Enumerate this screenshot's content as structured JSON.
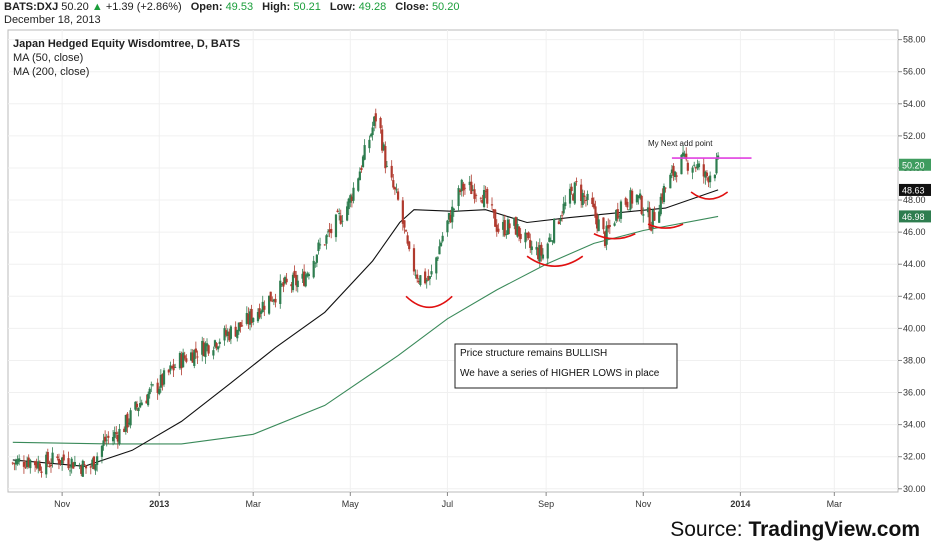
{
  "header": {
    "symbol": "BATS:DXJ",
    "price": "50.20",
    "change_arrow": "▲",
    "change": "+1.39 (+2.86%)",
    "open_label": "Open:",
    "open": "49.53",
    "high_label": "High:",
    "high": "50.21",
    "low_label": "Low:",
    "low": "49.28",
    "close_label": "Close:",
    "close": "50.20",
    "date": "December 18, 2013"
  },
  "legend": {
    "title": "Japan Hedged Equity Wisdomtree, D, BATS",
    "ma50": "MA (50, close)",
    "ma200": "MA (200, close)"
  },
  "annotations": {
    "box_line1": "Price structure remains BULLISH",
    "box_line2": "We have a series of HIGHER LOWS in place",
    "next_add": "My Next add point"
  },
  "source": {
    "prefix": "Source: ",
    "brand": "TradingView.com"
  },
  "colors": {
    "up": "#2e7d4f",
    "down": "#b03a2e",
    "ma50": "#111111",
    "ma200": "#3a8a5a",
    "highlight": "#e01010",
    "resistance": "#e040e0",
    "last_price_tag": "#3f9c5f",
    "ma50_tag": "#111111",
    "ma200_tag": "#2e7d4f"
  },
  "chart_data": {
    "type": "candlestick",
    "title": "Japan Hedged Equity Wisdomtree, D, BATS",
    "y_axis": {
      "ticks": [
        "58.00",
        "56.00",
        "54.00",
        "52.00",
        "50.00",
        "48.00",
        "46.00",
        "44.00",
        "42.00",
        "40.00",
        "38.00",
        "36.00",
        "34.00",
        "32.00",
        "30.00"
      ],
      "range": [
        29.8,
        58.6
      ]
    },
    "x_axis": {
      "tick_labels": [
        "Nov",
        "2013",
        "Mar",
        "May",
        "Jul",
        "Sep",
        "Nov",
        "2014",
        "Mar"
      ],
      "tick_dates": [
        "2012-11-01",
        "2013-01-01",
        "2013-03-01",
        "2013-05-01",
        "2013-07-01",
        "2013-09-01",
        "2013-11-01",
        "2014-01-01",
        "2014-03-01"
      ],
      "range": [
        "2012-09-28",
        "2014-04-10"
      ]
    },
    "price_tags": {
      "last": "50.20",
      "ma50": "48.63",
      "ma200": "46.98"
    },
    "close_points": [
      [
        "2012-10-01",
        31.6
      ],
      [
        "2012-10-10",
        31.8
      ],
      [
        "2012-10-20",
        31.5
      ],
      [
        "2012-10-30",
        31.9
      ],
      [
        "2012-11-10",
        31.6
      ],
      [
        "2012-11-18",
        31.2
      ],
      [
        "2012-11-28",
        33.0
      ],
      [
        "2012-12-08",
        33.6
      ],
      [
        "2012-12-20",
        35.4
      ],
      [
        "2013-01-02",
        36.6
      ],
      [
        "2013-01-14",
        38.0
      ],
      [
        "2013-01-28",
        38.8
      ],
      [
        "2013-02-12",
        39.6
      ],
      [
        "2013-02-25",
        40.4
      ],
      [
        "2013-03-08",
        41.6
      ],
      [
        "2013-03-20",
        42.6
      ],
      [
        "2013-04-01",
        43.0
      ],
      [
        "2013-04-10",
        44.8
      ],
      [
        "2013-04-20",
        46.2
      ],
      [
        "2013-04-30",
        47.8
      ],
      [
        "2013-05-08",
        50.2
      ],
      [
        "2013-05-18",
        53.5
      ],
      [
        "2013-05-24",
        49.8
      ],
      [
        "2013-06-01",
        47.6
      ],
      [
        "2013-06-07",
        44.4
      ],
      [
        "2013-06-13",
        43.2
      ],
      [
        "2013-06-20",
        43.0
      ],
      [
        "2013-06-28",
        45.8
      ],
      [
        "2013-07-10",
        48.8
      ],
      [
        "2013-07-22",
        48.6
      ],
      [
        "2013-08-02",
        46.2
      ],
      [
        "2013-08-12",
        46.4
      ],
      [
        "2013-08-22",
        45.0
      ],
      [
        "2013-08-30",
        44.6
      ],
      [
        "2013-09-10",
        47.2
      ],
      [
        "2013-09-20",
        48.8
      ],
      [
        "2013-09-30",
        47.4
      ],
      [
        "2013-10-08",
        45.6
      ],
      [
        "2013-10-18",
        47.8
      ],
      [
        "2013-10-28",
        48.2
      ],
      [
        "2013-11-06",
        46.6
      ],
      [
        "2013-11-14",
        48.6
      ],
      [
        "2013-11-24",
        50.4
      ],
      [
        "2013-12-03",
        50.3
      ],
      [
        "2013-12-10",
        49.4
      ],
      [
        "2013-12-18",
        50.2
      ]
    ],
    "ma50_points": [
      [
        "2012-10-01",
        31.8
      ],
      [
        "2012-11-15",
        31.4
      ],
      [
        "2012-12-15",
        32.4
      ],
      [
        "2013-01-15",
        34.2
      ],
      [
        "2013-02-15",
        36.6
      ],
      [
        "2013-03-15",
        38.8
      ],
      [
        "2013-04-15",
        41.0
      ],
      [
        "2013-05-15",
        44.2
      ],
      [
        "2013-06-01",
        46.6
      ],
      [
        "2013-06-10",
        47.4
      ],
      [
        "2013-07-05",
        47.3
      ],
      [
        "2013-07-25",
        47.4
      ],
      [
        "2013-08-20",
        46.6
      ],
      [
        "2013-09-15",
        46.9
      ],
      [
        "2013-10-15",
        47.2
      ],
      [
        "2013-11-15",
        47.5
      ],
      [
        "2013-12-18",
        48.63
      ]
    ],
    "ma200_points": [
      [
        "2012-10-01",
        32.9
      ],
      [
        "2012-12-01",
        32.8
      ],
      [
        "2013-01-15",
        32.8
      ],
      [
        "2013-03-01",
        33.4
      ],
      [
        "2013-04-15",
        35.2
      ],
      [
        "2013-05-31",
        38.3
      ],
      [
        "2013-07-01",
        40.6
      ],
      [
        "2013-08-01",
        42.4
      ],
      [
        "2013-09-01",
        44.0
      ],
      [
        "2013-10-01",
        45.3
      ],
      [
        "2013-11-01",
        46.1
      ],
      [
        "2013-12-18",
        46.98
      ]
    ]
  }
}
